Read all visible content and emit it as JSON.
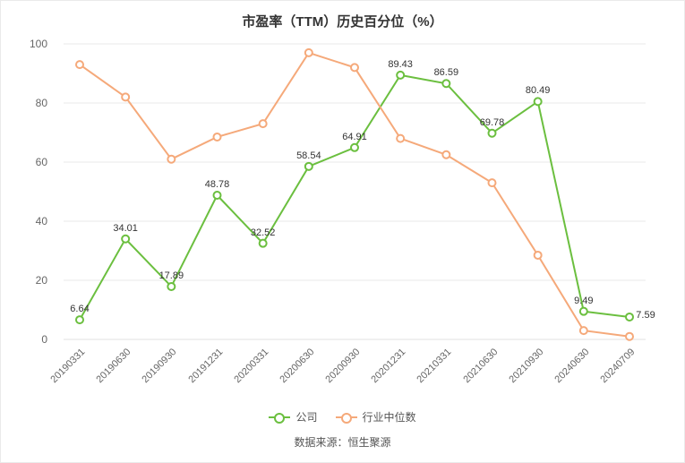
{
  "chart": {
    "type": "line",
    "title": "市盈率（TTM）历史百分位（%）",
    "title_fontsize": 15,
    "title_color": "#333333",
    "background_color": "#ffffff",
    "border_color": "#eaeaea",
    "grid_color": "#e8e8e8",
    "axis_color": "#666666",
    "label_fontsize": 12,
    "xlabel_fontsize": 11,
    "datalabel_fontsize": 11,
    "datalabel_color": "#333333",
    "x_categories": [
      "20190331",
      "20190630",
      "20190930",
      "20191231",
      "20200331",
      "20200630",
      "20200930",
      "20201231",
      "20210331",
      "20210630",
      "20210930",
      "20240630",
      "20240709"
    ],
    "x_rotation_deg": -45,
    "ylim": [
      0,
      100
    ],
    "ytick_step": 20,
    "yticks": [
      0,
      20,
      40,
      60,
      80,
      100
    ],
    "marker_radius": 4,
    "line_width": 2,
    "series": [
      {
        "key": "company",
        "name": "公司",
        "color": "#6bbf3f",
        "values": [
          6.64,
          34.01,
          17.89,
          48.78,
          32.52,
          58.54,
          64.91,
          89.43,
          86.59,
          69.78,
          80.49,
          9.49,
          7.59
        ],
        "show_labels": true
      },
      {
        "key": "industry_median",
        "name": "行业中位数",
        "color": "#f5a97a",
        "values": [
          93,
          82,
          61,
          68.5,
          73,
          97,
          92,
          68,
          62.5,
          53,
          28.5,
          3,
          1
        ],
        "show_labels": false
      }
    ],
    "legend_position": "bottom",
    "source_label": "数据来源：",
    "source_value": "恒生聚源"
  }
}
